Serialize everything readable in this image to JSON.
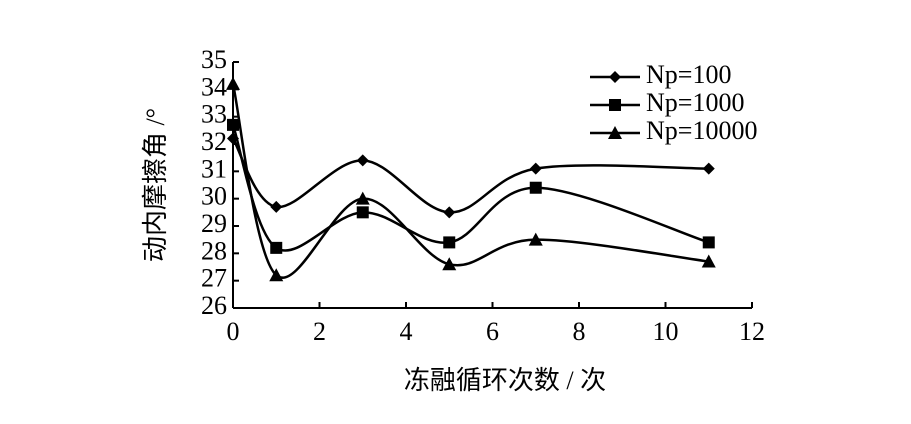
{
  "chart_data": {
    "type": "line",
    "x_label": "冻融循环次数 / 次",
    "y_label": "动内摩擦角 /°",
    "x": [
      0,
      1,
      3,
      5,
      7,
      11
    ],
    "series": [
      {
        "name": "Np=100",
        "color": "#000000",
        "marker": "diamond",
        "values": [
          32.2,
          29.7,
          31.4,
          29.5,
          31.1,
          31.1
        ]
      },
      {
        "name": "Np=1000",
        "color": "#000000",
        "marker": "square",
        "values": [
          32.7,
          28.2,
          29.5,
          28.4,
          30.4,
          28.4
        ]
      },
      {
        "name": "Np=10000",
        "color": "#000000",
        "marker": "triangle",
        "values": [
          34.2,
          27.2,
          30.0,
          27.6,
          28.5,
          27.7
        ]
      }
    ],
    "xlim": [
      0,
      12
    ],
    "xticks": [
      0,
      2,
      4,
      6,
      8,
      10,
      12
    ],
    "ylim": [
      26,
      35
    ],
    "yticks": [
      26,
      27,
      28,
      29,
      30,
      31,
      32,
      33,
      34,
      35
    ],
    "smooth": true,
    "grid": false,
    "legend": "upper right"
  }
}
